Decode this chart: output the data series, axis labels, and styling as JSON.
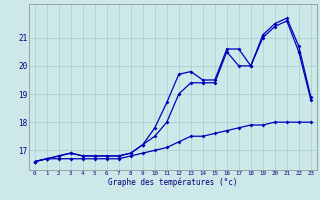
{
  "background_color": "#cce8e8",
  "grid_color": "#aacccc",
  "line_color": "#0000bb",
  "x_hours": [
    0,
    1,
    2,
    3,
    4,
    5,
    6,
    7,
    8,
    9,
    10,
    11,
    12,
    13,
    14,
    15,
    16,
    17,
    18,
    19,
    20,
    21,
    22,
    23
  ],
  "temp_actual": [
    16.6,
    16.7,
    16.8,
    16.9,
    16.8,
    16.8,
    16.8,
    16.8,
    16.9,
    17.2,
    17.8,
    18.7,
    19.7,
    19.8,
    19.5,
    19.5,
    20.6,
    20.6,
    20.0,
    21.1,
    21.5,
    21.7,
    20.7,
    18.9
  ],
  "temp_min": [
    16.6,
    16.7,
    16.8,
    16.9,
    16.8,
    16.8,
    16.8,
    16.8,
    16.9,
    17.2,
    17.5,
    18.0,
    19.0,
    19.4,
    19.4,
    19.4,
    20.5,
    20.0,
    20.0,
    21.0,
    21.4,
    21.6,
    20.5,
    18.8
  ],
  "temp_dew": [
    16.6,
    16.7,
    16.7,
    16.7,
    16.7,
    16.7,
    16.7,
    16.7,
    16.8,
    16.9,
    17.0,
    17.1,
    17.3,
    17.5,
    17.5,
    17.6,
    17.7,
    17.8,
    17.9,
    17.9,
    18.0,
    18.0,
    18.0,
    18.0
  ],
  "ylim": [
    16.3,
    22.2
  ],
  "yticks": [
    17,
    18,
    19,
    20,
    21
  ],
  "xlabel": "Graphe des températures (°c)"
}
